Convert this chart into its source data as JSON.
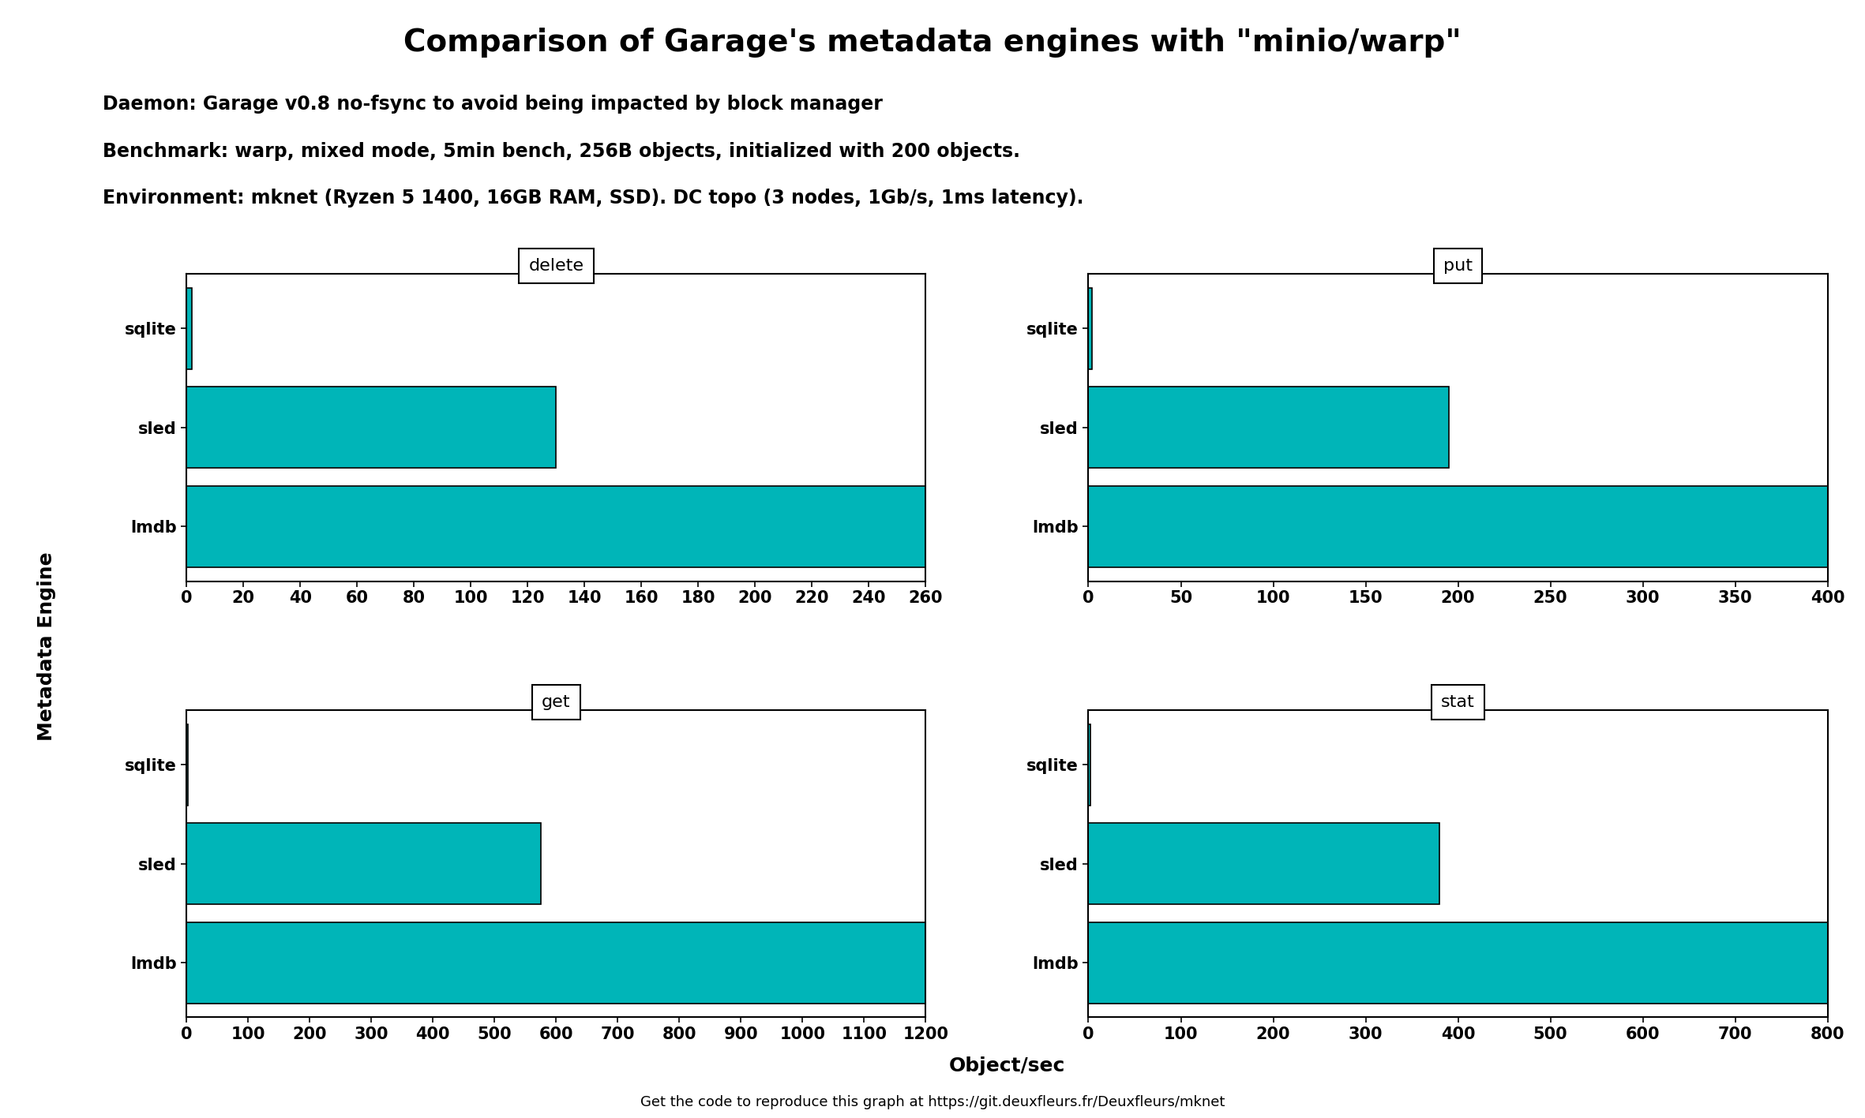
{
  "title": "Comparison of Garage's metadata engines with \"minio/warp\"",
  "subtitle_lines": [
    "Daemon: Garage v0.8 no-fsync to avoid being impacted by block manager",
    "Benchmark: warp, mixed mode, 5min bench, 256B objects, initialized with 200 objects.",
    "Environment: mknet (Ryzen 5 1400, 16GB RAM, SSD). DC topo (3 nodes, 1Gb/s, 1ms latency)."
  ],
  "footer": "Get the code to reproduce this graph at https://git.deuxfleurs.fr/Deuxfleurs/mknet",
  "categories": [
    "sqlite",
    "sled",
    "lmdb"
  ],
  "subplots": [
    {
      "title": "delete",
      "values": [
        2,
        130,
        260
      ],
      "xlim": [
        0,
        260
      ],
      "xticks": [
        0,
        20,
        40,
        60,
        80,
        100,
        120,
        140,
        160,
        180,
        200,
        220,
        240,
        260
      ]
    },
    {
      "title": "put",
      "values": [
        2,
        195,
        400
      ],
      "xlim": [
        0,
        400
      ],
      "xticks": [
        0,
        50,
        100,
        150,
        200,
        250,
        300,
        350,
        400
      ]
    },
    {
      "title": "get",
      "values": [
        2,
        575,
        1200
      ],
      "xlim": [
        0,
        1200
      ],
      "xticks": [
        0,
        100,
        200,
        300,
        400,
        500,
        600,
        700,
        800,
        900,
        1000,
        1100,
        1200
      ]
    },
    {
      "title": "stat",
      "values": [
        2,
        380,
        800
      ],
      "xlim": [
        0,
        800
      ],
      "xticks": [
        0,
        100,
        200,
        300,
        400,
        500,
        600,
        700,
        800
      ]
    }
  ],
  "bar_color": "#00B5B8",
  "bar_edge_color": "#000000",
  "bar_height": 0.82,
  "xlabel": "Object/sec",
  "ylabel": "Metadata Engine",
  "background_color": "#ffffff",
  "title_fontsize": 28,
  "subtitle_fontsize": 17,
  "axis_label_fontsize": 18,
  "tick_fontsize": 15,
  "subplot_title_fontsize": 16,
  "footer_fontsize": 13
}
